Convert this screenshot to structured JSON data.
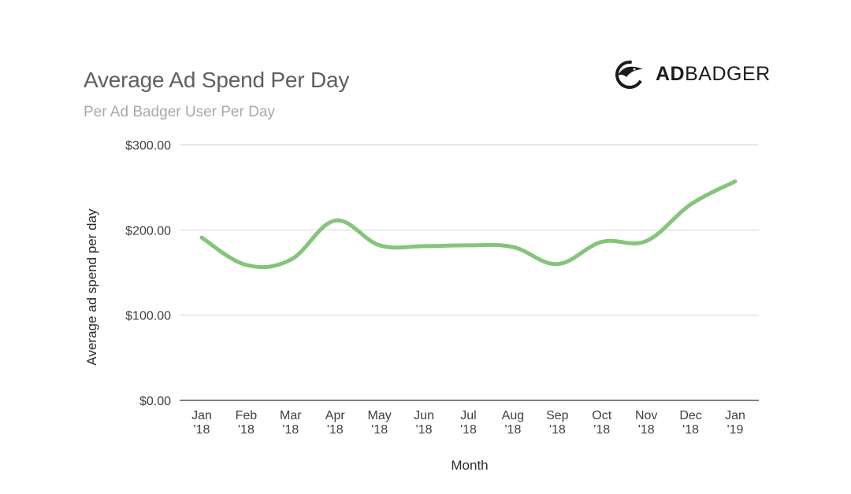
{
  "header": {
    "title": "Average Ad Spend Per Day",
    "subtitle": "Per Ad Badger User Per Day"
  },
  "logo": {
    "icon": "badger-icon",
    "text_bold": "AD",
    "text_light": "BADGER"
  },
  "colors": {
    "line": "#84c57a",
    "gridline": "#d9d9d9",
    "baseline": "#555555",
    "title": "#5f5f5f",
    "subtitle": "#a9a9a9"
  },
  "chart_data": {
    "type": "line",
    "title": "Average Ad Spend Per Day",
    "subtitle": "Per Ad Badger User Per Day",
    "xlabel": "Month",
    "ylabel": "Average ad spend per day",
    "categories": [
      [
        "Jan",
        "'18"
      ],
      [
        "Feb",
        "'18"
      ],
      [
        "Mar",
        "'18"
      ],
      [
        "Apr",
        "'18"
      ],
      [
        "May",
        "'18"
      ],
      [
        "Jun",
        "'18"
      ],
      [
        "Jul",
        "'18"
      ],
      [
        "Aug",
        "'18"
      ],
      [
        "Sep",
        "'18"
      ],
      [
        "Oct",
        "'18"
      ],
      [
        "Nov",
        "'18"
      ],
      [
        "Dec",
        "'18"
      ],
      [
        "Jan",
        "'19"
      ]
    ],
    "series": [
      {
        "values": [
          191,
          159,
          165,
          211,
          182,
          181,
          182,
          180,
          160,
          186,
          187,
          230,
          257
        ]
      }
    ],
    "yticks": [
      {
        "value": 0,
        "label": "$0.00"
      },
      {
        "value": 100,
        "label": "$100.00"
      },
      {
        "value": 200,
        "label": "$200.00"
      },
      {
        "value": 300,
        "label": "$300.00"
      }
    ],
    "ylim": [
      0,
      300
    ],
    "grid": true,
    "legend": "none"
  }
}
